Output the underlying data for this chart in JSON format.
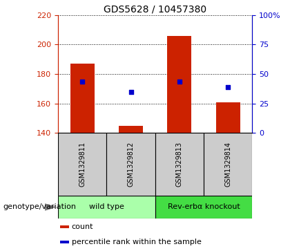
{
  "title": "GDS5628 / 10457380",
  "samples": [
    "GSM1329811",
    "GSM1329812",
    "GSM1329813",
    "GSM1329814"
  ],
  "bar_bottom": 140,
  "bar_tops": [
    187,
    145,
    206,
    161
  ],
  "percentile_ranks": [
    175,
    168,
    175,
    171
  ],
  "left_ylim": [
    140,
    220
  ],
  "right_ylim": [
    0,
    100
  ],
  "left_yticks": [
    140,
    160,
    180,
    200,
    220
  ],
  "right_yticks": [
    0,
    25,
    50,
    75,
    100
  ],
  "right_yticklabels": [
    "0",
    "25",
    "50",
    "75",
    "100%"
  ],
  "bar_color": "#cc2200",
  "dot_color": "#0000cc",
  "groups": [
    {
      "label": "wild type",
      "indices": [
        0,
        1
      ],
      "color": "#aaffaa"
    },
    {
      "label": "Rev-erbα knockout",
      "indices": [
        2,
        3
      ],
      "color": "#44dd44"
    }
  ],
  "group_label": "genotype/variation",
  "legend_items": [
    {
      "color": "#cc2200",
      "label": "count"
    },
    {
      "color": "#0000cc",
      "label": "percentile rank within the sample"
    }
  ],
  "left_axis_color": "#cc2200",
  "right_axis_color": "#0000cc",
  "bar_width": 0.5,
  "sample_box_color": "#cccccc",
  "title_fontsize": 10,
  "tick_fontsize": 8,
  "label_fontsize": 8,
  "legend_fontsize": 8
}
